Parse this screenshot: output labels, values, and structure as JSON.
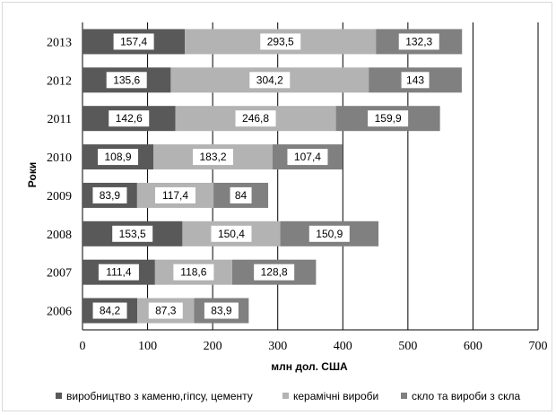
{
  "chart_data": {
    "type": "bar",
    "orientation": "horizontal",
    "stacked": true,
    "title": "",
    "xlabel": "млн дол. США",
    "ylabel": "Роки",
    "xlim": [
      0,
      700
    ],
    "xticks": [
      0,
      100,
      200,
      300,
      400,
      500,
      600,
      700
    ],
    "grid": true,
    "legend_position": "bottom",
    "categories": [
      "2006",
      "2007",
      "2008",
      "2009",
      "2010",
      "2011",
      "2012",
      "2013"
    ],
    "series": [
      {
        "name": "виробництво з каменю,гіпсу, цементу",
        "color": "#595959",
        "values": [
          84.2,
          111.4,
          153.5,
          83.9,
          108.9,
          142.6,
          135.6,
          157.4
        ],
        "labels": [
          "84,2",
          "111,4",
          "153,5",
          "83,9",
          "108,9",
          "142,6",
          "135,6",
          "157,4"
        ]
      },
      {
        "name": "керамічні вироби",
        "color": "#b3b3b3",
        "values": [
          87.3,
          118.6,
          150.4,
          117.4,
          183.2,
          246.8,
          304.2,
          293.5
        ],
        "labels": [
          "87,3",
          "118,6",
          "150,4",
          "117,4",
          "183,2",
          "246,8",
          "304,2",
          "293,5"
        ]
      },
      {
        "name": "скло та вироби з скла",
        "color": "#808080",
        "values": [
          83.9,
          128.8,
          150.9,
          84,
          107.4,
          159.9,
          143,
          132.3
        ],
        "labels": [
          "83,9",
          "128,8",
          "150,9",
          "84",
          "107,4",
          "159,9",
          "143",
          "132,3"
        ]
      }
    ]
  }
}
